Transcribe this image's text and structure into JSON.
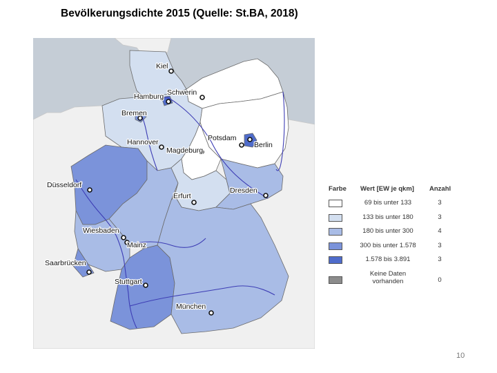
{
  "title": "Bevölkerungsdichte 2015 (Quelle: St.BA, 2018)",
  "colors": {
    "water": "#c5cdd6",
    "neighbor_land": "#f0f0f0",
    "border": "#6a6a6a",
    "river": "#3c3cb4",
    "class_1": "#ffffff",
    "class_2": "#d3dff0",
    "class_3": "#a9bce6",
    "class_4": "#7b93da",
    "class_5": "#4f6ccb",
    "no_data": "#8c8c8c"
  },
  "cities": [
    {
      "name": "Kiel"
    },
    {
      "name": "Hamburg"
    },
    {
      "name": "Schwerin"
    },
    {
      "name": "Bremen"
    },
    {
      "name": "Hannover"
    },
    {
      "name": "Potsdam"
    },
    {
      "name": "Berlin"
    },
    {
      "name": "Magdeburg"
    },
    {
      "name": "Düsseldorf"
    },
    {
      "name": "Erfurt"
    },
    {
      "name": "Dresden"
    },
    {
      "name": "Wiesbaden"
    },
    {
      "name": "Mainz"
    },
    {
      "name": "Saarbrücken"
    },
    {
      "name": "Stuttgart"
    },
    {
      "name": "München"
    }
  ],
  "legend": {
    "header_color": "Farbe",
    "header_value": "Wert [EW je qkm]",
    "header_count": "Anzahl",
    "items": [
      {
        "range": "69 bis unter 133",
        "count": "3"
      },
      {
        "range": "133 bis unter 180",
        "count": "3"
      },
      {
        "range": "180 bis unter 300",
        "count": "4"
      },
      {
        "range": "300 bis unter 1.578",
        "count": "3"
      },
      {
        "range": "1.578 bis 3.891",
        "count": "3"
      },
      {
        "range_line1": "Keine Daten",
        "range_line2": "vorhanden",
        "count": "0"
      }
    ]
  },
  "page_number": "10"
}
